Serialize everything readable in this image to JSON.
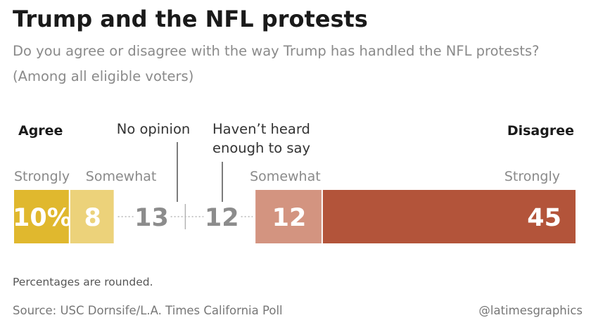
{
  "title": "Trump and the NFL protests",
  "subtitle": "Do you agree or disagree with the way Trump has handled the NFL protests?",
  "subtitle2": "(Among all eligible voters)",
  "footnote": "Percentages are rounded.",
  "source": "Source: USC Dornsife/L.A. Times California Poll",
  "credit": "@latimesgraphics",
  "chart_data": {
    "type": "bar",
    "orientation": "horizontal-stacked",
    "group_labels": {
      "agree": "Agree",
      "disagree": "Disagree"
    },
    "categories": [
      "Strongly",
      "Somewhat",
      "No opinion",
      "Haven’t heard enough to say",
      "Somewhat",
      "Strongly"
    ],
    "values": [
      10,
      8,
      13,
      12,
      12,
      45
    ],
    "value_labels": [
      "10%",
      "8",
      "13",
      "12",
      "12",
      "45"
    ],
    "neutral_labels": [
      "No opinion",
      "Haven’t heard",
      "enough to say"
    ],
    "colors": [
      "#e0b82e",
      "#ecd27a",
      null,
      null,
      "#d39480",
      "#b3543a"
    ],
    "colors_meaning": {
      "neutral_text": "#8c8c8c",
      "bar_text": "#ffffff"
    },
    "xlim": [
      0,
      100
    ]
  }
}
